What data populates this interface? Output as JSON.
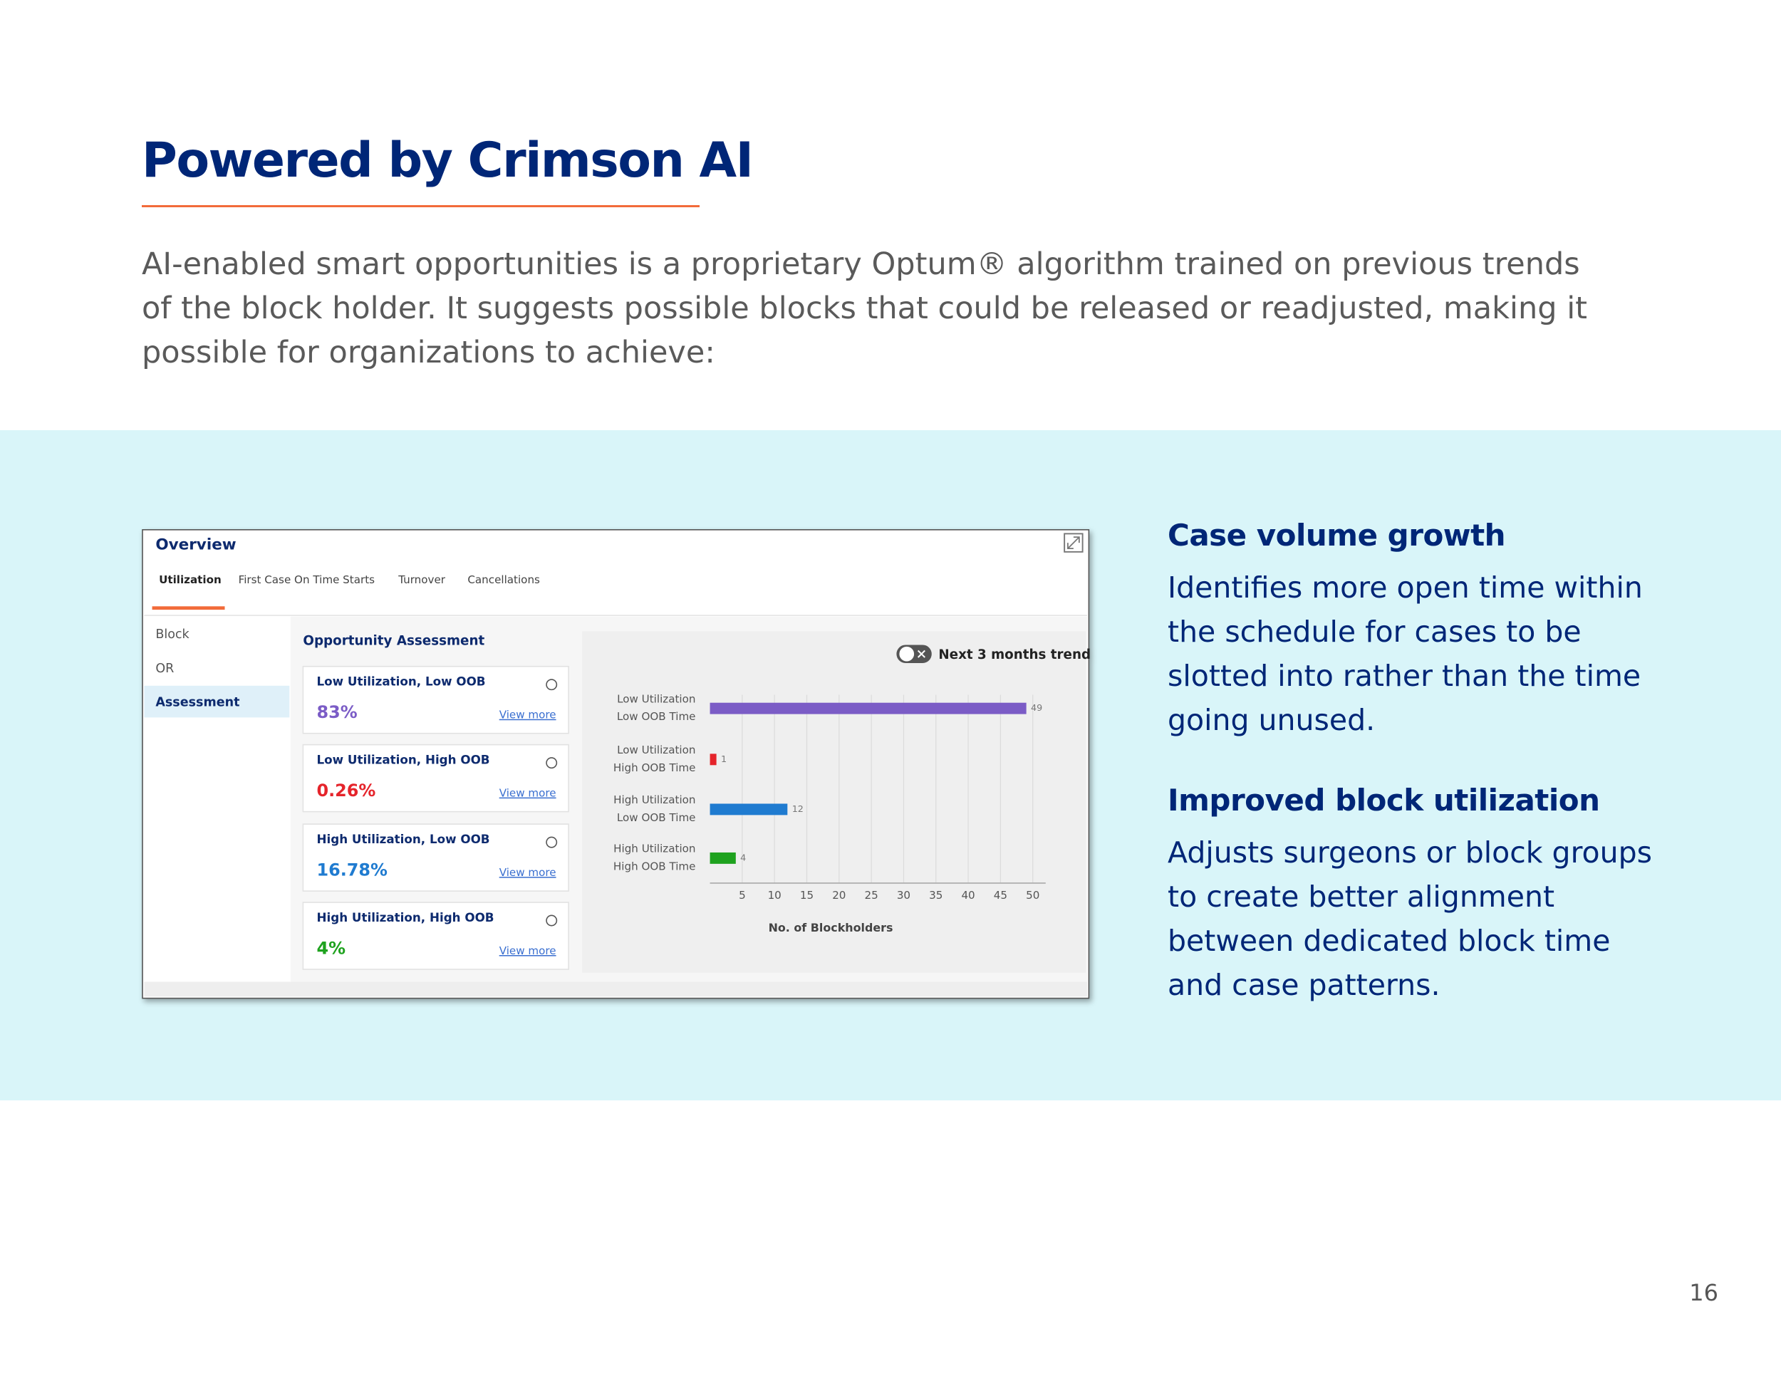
{
  "title": "Powered by Crimson AI",
  "intro": "AI-enabled smart opportunities is a proprietary Optum® algorithm trained on previous trends of the block holder. It suggests possible blocks that could be released or readjusted, making it possible for organizations to achieve:",
  "screenshot": {
    "heading": "Overview",
    "tabs": [
      "Utilization",
      "First Case On Time Starts",
      "Turnover",
      "Cancellations"
    ],
    "sidebar": [
      "Block",
      "OR",
      "Assessment"
    ],
    "panel_title": "Opportunity Assessment",
    "cards": [
      {
        "label": "Low Utilization, Low OOB",
        "value": "83%",
        "color": "#7b5cc6",
        "link": "View more"
      },
      {
        "label": "Low Utilization, High OOB",
        "value": "0.26%",
        "color": "#e5242b",
        "link": "View more"
      },
      {
        "label": "High Utilization, Low OOB",
        "value": "16.78%",
        "color": "#1f7bd0",
        "link": "View more"
      },
      {
        "label": "High Utilization, High OOB",
        "value": "4%",
        "color": "#1ea21e",
        "link": "View more"
      }
    ],
    "toggle_label": "Next 3 months trend",
    "chart": {
      "type": "bar",
      "orientation": "horizontal",
      "categories": [
        [
          "Low Utilization",
          "Low OOB Time"
        ],
        [
          "Low Utilization",
          "High OOB Time"
        ],
        [
          "High Utilization",
          "Low OOB Time"
        ],
        [
          "High Utilization",
          "High OOB Time"
        ]
      ],
      "values": [
        49,
        1,
        12,
        4
      ],
      "colors": [
        "#7b5cc6",
        "#e5242b",
        "#1f7bd0",
        "#1ea21e"
      ],
      "xlim": [
        0,
        52
      ],
      "xticks": [
        5,
        10,
        15,
        20,
        25,
        30,
        35,
        40,
        45,
        50
      ],
      "grid": true,
      "x_label": "No. of Blockholders"
    }
  },
  "features": [
    {
      "heading": "Case volume growth",
      "text": "Identifies more open time within the schedule for cases to be slotted into rather than the time going unused."
    },
    {
      "heading": "Improved block utilization",
      "text": "Adjusts surgeons or block groups to create better alignment between dedicated block time and case patterns."
    }
  ],
  "page_number": "16"
}
